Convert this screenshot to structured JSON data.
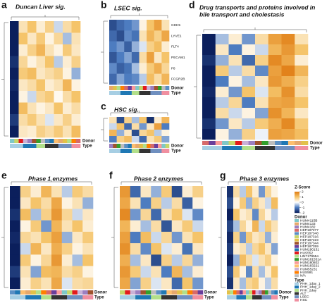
{
  "panels": [
    {
      "letter": "a",
      "title_lines": [
        "Duncan Liver sig."
      ],
      "annotation_labels": [
        "Donor",
        "Type"
      ],
      "heatmap": [
        [
          -2,
          0.5,
          1,
          0.3,
          0.8,
          -0.3,
          0.6,
          1
        ],
        [
          -2,
          1,
          0.4,
          0.9,
          0.2,
          0.7,
          -0.5,
          0.5
        ],
        [
          -2,
          0.3,
          0.8,
          1.2,
          0.5,
          0.2,
          0.9,
          0.4
        ],
        [
          -1.8,
          0.7,
          0.2,
          0.5,
          1,
          -0.4,
          0.3,
          0.8
        ],
        [
          -2,
          0.9,
          1.1,
          0.4,
          0.6,
          0.8,
          0.2,
          -0.6
        ],
        [
          -1.9,
          0.4,
          0.6,
          1,
          0.3,
          0.5,
          1.2,
          0.2
        ],
        [
          -2,
          0.2,
          -0.3,
          0.7,
          0.9,
          0.1,
          0.6,
          1
        ],
        [
          -2,
          1.1,
          0.5,
          0.2,
          0.4,
          1,
          0.3,
          0.6
        ],
        [
          -1.7,
          0.6,
          0.9,
          0.5,
          -0.2,
          0.4,
          0.8,
          0.3
        ],
        [
          -2,
          0.4,
          0.3,
          0.8,
          0.6,
          0.9,
          0.5,
          1.1
        ]
      ]
    },
    {
      "letter": "b",
      "title_lines": [
        "LSEC sig."
      ],
      "row_labels": [
        "CDH5",
        "LYVE1",
        "FLT4",
        "PECAM1",
        "F8",
        "FCGR2B"
      ],
      "annotation_labels": [
        "Donor",
        "Type"
      ],
      "heatmap": [
        [
          -1.5,
          -1.2,
          -1,
          -0.8,
          0.2,
          1,
          1.5,
          0.5
        ],
        [
          -1.2,
          -1.5,
          -0.9,
          -1.1,
          0.5,
          1.2,
          0.8,
          1.4
        ],
        [
          -1,
          -0.8,
          -1.3,
          -0.6,
          -0.2,
          0.8,
          1.1,
          0.3
        ],
        [
          -1.4,
          -1,
          -0.7,
          -1.2,
          0.6,
          1.5,
          0.4,
          1
        ],
        [
          -0.9,
          -1.3,
          -1.1,
          -0.5,
          0.3,
          0.9,
          1.3,
          0.7
        ],
        [
          -1.2,
          -0.7,
          -1,
          -0.9,
          -0.4,
          1.1,
          0.6,
          1.2
        ]
      ]
    },
    {
      "letter": "c",
      "title_lines": [
        "HSC sig."
      ],
      "annotation_labels": [
        "Donor",
        "Type"
      ],
      "heatmap": [
        [
          0.5,
          -1.5,
          0.8,
          -0.5,
          1,
          -1.8,
          0.3,
          1.2
        ],
        [
          -0.3,
          1,
          -1.2,
          0.6,
          -0.8,
          0.4,
          1.5,
          -1
        ],
        [
          1.2,
          -0.6,
          0.4,
          -1.5,
          0.7,
          1,
          -0.4,
          0.2
        ],
        [
          -1,
          0.8,
          1.1,
          -0.3,
          -1.2,
          0.5,
          0.9,
          -0.7
        ]
      ]
    },
    {
      "letter": "d",
      "title_lines": [
        "Drug transports and proteins involved in",
        "bile transport and cholestasis"
      ],
      "annotation_labels": [
        "Donor",
        "Type"
      ],
      "heatmap": [
        [
          -2,
          -0.5,
          0.3,
          -0.8,
          0.6,
          1.5,
          1.8,
          0.5
        ],
        [
          -2,
          0.4,
          -1,
          0.2,
          -0.3,
          1.2,
          1.6,
          1
        ],
        [
          -1.8,
          -0.6,
          0.5,
          -1.2,
          0.8,
          1.8,
          1.4,
          0.3
        ],
        [
          -2,
          0.9,
          -0.4,
          0.6,
          -0.9,
          1.5,
          1.9,
          1.2
        ],
        [
          -2,
          -1,
          0.2,
          -0.5,
          0.4,
          1.6,
          1.3,
          0.8
        ],
        [
          -1.9,
          0.3,
          -0.8,
          1,
          -0.2,
          1.1,
          1.7,
          0.6
        ],
        [
          -2,
          -0.4,
          0.7,
          -1,
          0.5,
          1.4,
          1.5,
          1
        ],
        [
          -2,
          0.6,
          -0.3,
          0.2,
          -0.7,
          1.7,
          1.2,
          0.4
        ],
        [
          -1.8,
          -0.8,
          0.4,
          -0.4,
          0.9,
          1.3,
          1.8,
          0.9
        ],
        [
          -2,
          0.2,
          -0.6,
          0.8,
          -0.1,
          1.5,
          1.4,
          1.1
        ]
      ]
    },
    {
      "letter": "e",
      "title_lines": [
        "Phase 1 enzymes"
      ],
      "annotation_labels": [
        "Donor",
        "Type"
      ],
      "heatmap": [
        [
          -2,
          0.8,
          0.3,
          1.2,
          0.5,
          -0.4,
          0.9,
          0.6
        ],
        [
          -2,
          0.4,
          1,
          0.6,
          1.4,
          0.2,
          0.5,
          -0.6
        ],
        [
          -1.8,
          1.1,
          -0.5,
          0.8,
          1.6,
          0.7,
          -0.3,
          0.4
        ],
        [
          -2,
          0.2,
          0.9,
          -0.8,
          1.2,
          0.5,
          1,
          0.3
        ],
        [
          -1.9,
          0.7,
          0.5,
          1,
          1.5,
          -0.6,
          0.4,
          0.9
        ],
        [
          -2,
          -0.3,
          1.2,
          0.4,
          1.3,
          0.8,
          0.2,
          0.5
        ],
        [
          -2,
          0.9,
          0.2,
          0.7,
          1.6,
          0.3,
          -0.5,
          1
        ],
        [
          -1.7,
          0.5,
          -0.7,
          1.1,
          1.2,
          0.6,
          0.8,
          0.2
        ],
        [
          -2,
          0.3,
          0.8,
          0.5,
          1.4,
          -0.2,
          0.6,
          0.7
        ]
      ]
    },
    {
      "letter": "f",
      "title_lines": [
        "Phase 2 enzymes"
      ],
      "annotation_labels": [
        "Donor",
        "Type"
      ],
      "heatmap": [
        [
          1.6,
          -1.2,
          0.4,
          -0.6,
          0.9,
          -1.5,
          0.3,
          0.8
        ],
        [
          1.4,
          0.5,
          -1,
          0.8,
          -0.4,
          0.6,
          -1.3,
          0.2
        ],
        [
          1.8,
          -0.8,
          0.7,
          -1.2,
          0.5,
          1,
          -0.2,
          -0.9
        ],
        [
          1.2,
          0.3,
          -0.5,
          0.6,
          -1.4,
          0.4,
          0.9,
          -0.3
        ],
        [
          1.5,
          -1,
          1.1,
          -0.3,
          0.7,
          -0.8,
          0.5,
          1
        ],
        [
          1.7,
          0.6,
          -0.9,
          1,
          -0.2,
          0.3,
          -1.1,
          0.4
        ],
        [
          1.3,
          -0.5,
          0.4,
          -1.5,
          0.8,
          -0.4,
          0.7,
          -0.6
        ],
        [
          1.6,
          0.9,
          -0.3,
          0.5,
          -1,
          1.2,
          -0.5,
          0.3
        ],
        [
          1.4,
          -0.7,
          0.8,
          -0.2,
          0.4,
          -1.2,
          1,
          -0.8
        ]
      ]
    },
    {
      "letter": "g",
      "title_lines": [
        "Phase 3 enzymes"
      ],
      "annotation_labels": [
        "Donor",
        "Type"
      ],
      "heatmap": [
        [
          -1.8,
          0.6,
          -0.4,
          1,
          0.3,
          -0.8,
          0.7,
          0.2
        ],
        [
          -1.5,
          0.2,
          0.9,
          -0.6,
          0.8,
          0.4,
          -0.3,
          1.1
        ],
        [
          -2,
          1,
          0.3,
          0.5,
          -0.9,
          0.7,
          0.2,
          -0.4
        ],
        [
          -1.6,
          -0.5,
          0.7,
          0.2,
          1.2,
          -0.3,
          0.9,
          0.5
        ],
        [
          -1.9,
          0.8,
          -0.8,
          0.9,
          0.4,
          0.6,
          -0.6,
          0.3
        ],
        [
          -1.7,
          0.3,
          0.5,
          -0.4,
          0.7,
          1,
          0.4,
          -0.7
        ],
        [
          -2,
          -0.6,
          1.1,
          0.6,
          -0.2,
          0.5,
          0.8,
          0.2
        ],
        [
          -1.5,
          0.9,
          0.2,
          -0.9,
          0.6,
          -0.5,
          0.3,
          1
        ],
        [
          -1.8,
          0.4,
          -0.5,
          0.7,
          0.9,
          0.2,
          -0.4,
          0.6
        ]
      ]
    }
  ],
  "legend": {
    "zscore_title": "Z-Score",
    "zlim": [
      -2,
      2
    ],
    "zticks": [
      2,
      1,
      0,
      -1,
      -2
    ],
    "donor_title": "Donor",
    "donors": [
      {
        "name": "HUM4115B",
        "color": "#7fc8c8"
      },
      {
        "name": "HUM4133",
        "color": "#e6a86c"
      },
      {
        "name": "HUM4182",
        "color": "#9c7fc0"
      },
      {
        "name": "HEP187277",
        "color": "#d66a6a"
      },
      {
        "name": "HEP187348",
        "color": "#5a8fc4"
      },
      {
        "name": "HEP187316",
        "color": "#c7d66a"
      },
      {
        "name": "HEP187319",
        "color": "#e2c14a"
      },
      {
        "name": "HEP187344",
        "color": "#a0522d"
      },
      {
        "name": "HEP187359",
        "color": "#6a3d9a"
      },
      {
        "name": "HUM190131",
        "color": "#1f78b4"
      },
      {
        "name": "HUS552",
        "color": "#e31a1c"
      },
      {
        "name": "LIN?17955A",
        "color": "#b2df8a"
      },
      {
        "name": "HUM181551A",
        "color": "#33a02c"
      },
      {
        "name": "HUM180802",
        "color": "#fb9a99"
      },
      {
        "name": "HUM183221",
        "color": "#fdbf6f"
      },
      {
        "name": "HUM55231",
        "color": "#cab2d6"
      },
      {
        "name": "HUS591",
        "color": "#ff7f00"
      },
      {
        "name": "N/A",
        "color": "#bdbdbd"
      }
    ],
    "type_title": "Type",
    "types": [
      {
        "name": "PHH_1day_1",
        "color": "#a6cee3"
      },
      {
        "name": "PHH_1day_2",
        "color": "#1f78b4"
      },
      {
        "name": "PHH_2day",
        "color": "#b2df8a"
      },
      {
        "name": "ALT",
        "color": "#333333"
      },
      {
        "name": "LSEC",
        "color": "#6f8fbf"
      },
      {
        "name": "HSC",
        "color": "#f08fa0"
      }
    ]
  }
}
